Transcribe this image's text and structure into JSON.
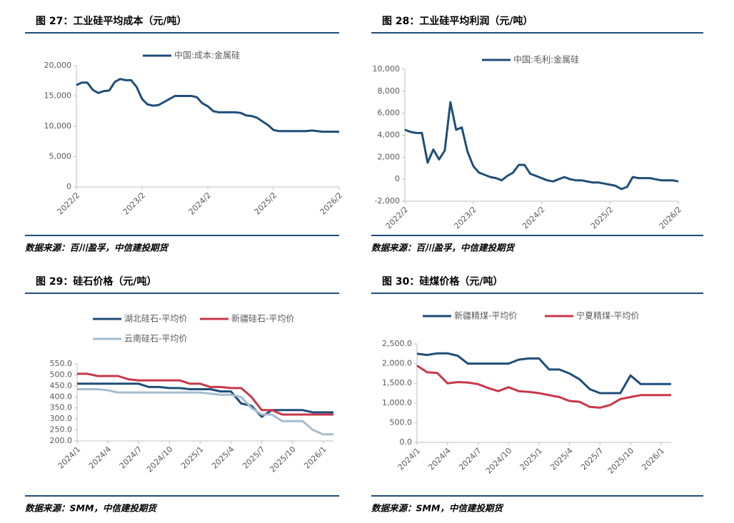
{
  "chart_data": [
    {
      "type": "line",
      "title": "图 27：工业硅平均成本（元/吨）",
      "source": "数据来源：百川盈孚，中信建投期货",
      "x": [
        "2022/2",
        "2022/3",
        "2022/4",
        "2022/5",
        "2022/6",
        "2022/7",
        "2022/8",
        "2022/9",
        "2022/10",
        "2022/11",
        "2022/12",
        "2023/1",
        "2023/2",
        "2023/3",
        "2023/4",
        "2023/5",
        "2023/6",
        "2023/7",
        "2023/8",
        "2023/9",
        "2023/10",
        "2023/11",
        "2023/12",
        "2024/1",
        "2024/2",
        "2024/3",
        "2024/4",
        "2024/5",
        "2024/6",
        "2024/7",
        "2024/8",
        "2024/9",
        "2024/10",
        "2024/11",
        "2024/12",
        "2025/1",
        "2025/2",
        "2025/3",
        "2025/4",
        "2025/5",
        "2025/6",
        "2025/7",
        "2025/8",
        "2025/9",
        "2025/10",
        "2025/11",
        "2025/12",
        "2026/1",
        "2026/2"
      ],
      "xticks": [
        "2022/2",
        "2023/2",
        "2024/2",
        "2025/2",
        "2026/2"
      ],
      "series": [
        {
          "name": "中国:成本:金属硅",
          "color": "#1f4e79",
          "values": [
            16800,
            17200,
            17200,
            16000,
            15500,
            15800,
            15900,
            17300,
            17800,
            17600,
            17600,
            16500,
            14500,
            13600,
            13400,
            13500,
            14000,
            14500,
            15000,
            15000,
            15000,
            15000,
            14800,
            13800,
            13300,
            12500,
            12300,
            12300,
            12300,
            12300,
            12200,
            11800,
            11700,
            11400,
            10800,
            10200,
            9400,
            9200,
            9200,
            9200,
            9200,
            9200,
            9200,
            9300,
            9200,
            9100,
            9100,
            9100,
            9100
          ]
        }
      ],
      "ylim": [
        0,
        20000
      ],
      "yticks": [
        0,
        {
          "value": 5000,
          "label": "5,000"
        },
        {
          "value": 10000,
          "label": "10,000"
        },
        {
          "value": 15000,
          "label": "15,000"
        },
        {
          "value": 20000,
          "label": "20,000"
        }
      ]
    },
    {
      "type": "line",
      "title": "图 28：工业硅平均利润（元/吨）",
      "source": "数据来源：百川盈孚，中信建投期货",
      "x": [
        "2022/2",
        "2022/3",
        "2022/4",
        "2022/5",
        "2022/6",
        "2022/7",
        "2022/8",
        "2022/9",
        "2022/10",
        "2022/11",
        "2022/12",
        "2023/1",
        "2023/2",
        "2023/3",
        "2023/4",
        "2023/5",
        "2023/6",
        "2023/7",
        "2023/8",
        "2023/9",
        "2023/10",
        "2023/11",
        "2023/12",
        "2024/1",
        "2024/2",
        "2024/3",
        "2024/4",
        "2024/5",
        "2024/6",
        "2024/7",
        "2024/8",
        "2024/9",
        "2024/10",
        "2024/11",
        "2024/12",
        "2025/1",
        "2025/2",
        "2025/3",
        "2025/4",
        "2025/5",
        "2025/6",
        "2025/7",
        "2025/8",
        "2025/9",
        "2025/10",
        "2025/11",
        "2025/12",
        "2026/1",
        "2026/2"
      ],
      "xticks": [
        "2022/2",
        "2023/2",
        "2024/2",
        "2025/2",
        "2026/2"
      ],
      "series": [
        {
          "name": "中国:毛利:金属硅",
          "color": "#1f4e79",
          "values": [
            4500,
            4300,
            4200,
            4200,
            1500,
            2700,
            1800,
            2600,
            7000,
            4500,
            4700,
            2500,
            1200,
            600,
            400,
            200,
            100,
            -100,
            300,
            600,
            1300,
            1300,
            500,
            300,
            100,
            -100,
            -200,
            0,
            200,
            0,
            -100,
            -100,
            -200,
            -300,
            -300,
            -400,
            -500,
            -600,
            -900,
            -700,
            200,
            100,
            100,
            100,
            0,
            -100,
            -100,
            -100,
            -200
          ]
        }
      ],
      "ylim": [
        -2000,
        10000
      ],
      "yticks": [
        {
          "value": -2000,
          "label": "-2,000"
        },
        0,
        {
          "value": 2000,
          "label": "2,000"
        },
        {
          "value": 4000,
          "label": "4,000"
        },
        {
          "value": 6000,
          "label": "6,000"
        },
        {
          "value": 8000,
          "label": "8,000"
        },
        {
          "value": 10000,
          "label": "10,000"
        }
      ]
    },
    {
      "type": "line",
      "title": "图 29：硅石价格（元/吨）",
      "source": "数据来源：SMM，中信建投期货",
      "x": [
        "2024/1",
        "2024/2",
        "2024/3",
        "2024/4",
        "2024/5",
        "2024/6",
        "2024/7",
        "2024/8",
        "2024/9",
        "2024/10",
        "2024/11",
        "2024/12",
        "2025/1",
        "2025/2",
        "2025/3",
        "2025/4",
        "2025/5",
        "2025/6",
        "2025/7",
        "2025/8",
        "2025/9",
        "2025/10",
        "2025/11",
        "2025/12",
        "2026/1",
        "2026/2"
      ],
      "xticks": [
        "2024/1",
        "2024/4",
        "2024/7",
        "2024/10",
        "2025/1",
        "2025/4",
        "2025/7",
        "2025/10",
        "2026/1"
      ],
      "series": [
        {
          "name": "湖北硅石-平均价",
          "color": "#1f4e79",
          "values": [
            460,
            460,
            460,
            460,
            460,
            460,
            460,
            445,
            445,
            440,
            440,
            435,
            435,
            435,
            425,
            425,
            370,
            360,
            310,
            340,
            340,
            340,
            340,
            330,
            330,
            330
          ]
        },
        {
          "name": "新疆硅石-平均价",
          "color": "#c8384a",
          "values": [
            505,
            505,
            495,
            495,
            495,
            480,
            475,
            475,
            475,
            475,
            475,
            460,
            460,
            445,
            445,
            440,
            440,
            400,
            340,
            340,
            320,
            320,
            320,
            320,
            320,
            320
          ]
        },
        {
          "name": "云南硅石-平均价",
          "color": "#a6bccf",
          "values": [
            435,
            435,
            435,
            430,
            420,
            420,
            420,
            420,
            420,
            420,
            420,
            420,
            420,
            415,
            410,
            410,
            400,
            350,
            320,
            320,
            290,
            290,
            290,
            250,
            230,
            230
          ]
        }
      ],
      "ylim": [
        200,
        550
      ],
      "yticks": [
        {
          "value": 200,
          "label": "200.0"
        },
        {
          "value": 250,
          "label": "250.0"
        },
        {
          "value": 300,
          "label": "300.0"
        },
        {
          "value": 350,
          "label": "350.0"
        },
        {
          "value": 400,
          "label": "400.0"
        },
        {
          "value": 450,
          "label": "450.0"
        },
        {
          "value": 500,
          "label": "500.0"
        },
        {
          "value": 550,
          "label": "550.0"
        }
      ]
    },
    {
      "type": "line",
      "title": "图 30：硅煤价格（元/吨）",
      "source": "数据来源：SMM，中信建投期货",
      "x": [
        "2024/1",
        "2024/2",
        "2024/3",
        "2024/4",
        "2024/5",
        "2024/6",
        "2024/7",
        "2024/8",
        "2024/9",
        "2024/10",
        "2024/11",
        "2024/12",
        "2025/1",
        "2025/2",
        "2025/3",
        "2025/4",
        "2025/5",
        "2025/6",
        "2025/7",
        "2025/8",
        "2025/9",
        "2025/10",
        "2025/11",
        "2025/12",
        "2026/1",
        "2026/2"
      ],
      "xticks": [
        "2024/1",
        "2024/4",
        "2024/7",
        "2024/10",
        "2025/1",
        "2025/4",
        "2025/7",
        "2025/10",
        "2026/1"
      ],
      "series": [
        {
          "name": "新疆精煤-平均价",
          "color": "#1f4e79",
          "values": [
            2250,
            2220,
            2260,
            2260,
            2200,
            2000,
            2000,
            2000,
            2000,
            2000,
            2100,
            2130,
            2130,
            1850,
            1850,
            1750,
            1600,
            1350,
            1250,
            1250,
            1250,
            1700,
            1480,
            1480,
            1480,
            1480
          ]
        },
        {
          "name": "宁夏精煤-平均价",
          "color": "#c8384a",
          "values": [
            1950,
            1780,
            1760,
            1500,
            1530,
            1520,
            1480,
            1380,
            1300,
            1400,
            1300,
            1280,
            1250,
            1200,
            1150,
            1050,
            1030,
            900,
            880,
            950,
            1100,
            1150,
            1200,
            1200,
            1200,
            1200
          ]
        }
      ],
      "ylim": [
        0,
        2500
      ],
      "yticks": [
        {
          "value": 0,
          "label": "0.0"
        },
        {
          "value": 500,
          "label": "500.0"
        },
        {
          "value": 1000,
          "label": "1,000.0"
        },
        {
          "value": 1500,
          "label": "1,500.0"
        },
        {
          "value": 2000,
          "label": "2,000.0"
        },
        {
          "value": 2500,
          "label": "2,500.0"
        }
      ]
    }
  ]
}
